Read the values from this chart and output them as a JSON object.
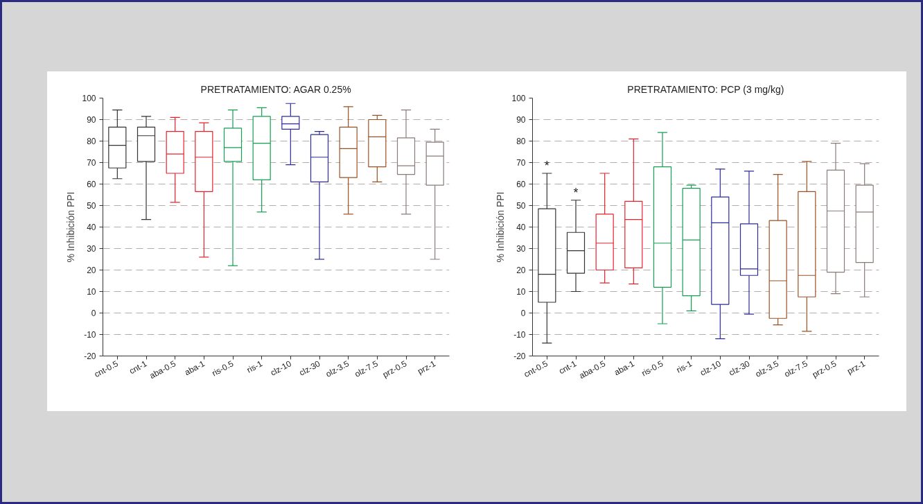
{
  "chart_data": [
    {
      "type": "box",
      "title": "PRETRATAMIENTO: AGAR 0.25%",
      "ylabel": "% Inhibición PPI",
      "categories": [
        "cnt-0.5",
        "cnt-1",
        "aba-0.5",
        "aba-1",
        "ris-0.5",
        "ris-1",
        "clz-10",
        "clz-30",
        "olz-3.5",
        "olz-7.5",
        "prz-0.5",
        "prz-1"
      ],
      "colors": [
        "#333333",
        "#333333",
        "#e8202a",
        "#e8202a",
        "#10a050",
        "#10a050",
        "#2a2a9a",
        "#2a2a9a",
        "#9a5020",
        "#9a5020",
        "#8a7a78",
        "#8a7a78"
      ],
      "boxes": [
        {
          "low": 62.5,
          "q1": 67.5,
          "median": 78,
          "q3": 86.5,
          "high": 94.5
        },
        {
          "low": 43.5,
          "q1": 70.5,
          "median": 82.5,
          "q3": 86.5,
          "high": 91.5
        },
        {
          "low": 51.5,
          "q1": 65,
          "median": 74,
          "q3": 84.5,
          "high": 91
        },
        {
          "low": 26,
          "q1": 56.5,
          "median": 72.5,
          "q3": 84.5,
          "high": 88.5
        },
        {
          "low": 22,
          "q1": 70.5,
          "median": 77,
          "q3": 86,
          "high": 94.5
        },
        {
          "low": 47,
          "q1": 62,
          "median": 79,
          "q3": 91.5,
          "high": 95.5
        },
        {
          "low": 69,
          "q1": 85.5,
          "median": 88,
          "q3": 91.5,
          "high": 97.5
        },
        {
          "low": 25,
          "q1": 61,
          "median": 72.5,
          "q3": 83,
          "high": 84.5
        },
        {
          "low": 46,
          "q1": 63,
          "median": 76.5,
          "q3": 86.5,
          "high": 96
        },
        {
          "low": 61,
          "q1": 68,
          "median": 82,
          "q3": 90,
          "high": 92
        },
        {
          "low": 46,
          "q1": 64.5,
          "median": 68.5,
          "q3": 81.5,
          "high": 94.5
        },
        {
          "low": 25,
          "q1": 59.5,
          "median": 73,
          "q3": 79.5,
          "high": 85.5
        }
      ],
      "ylim": [
        -20,
        100
      ],
      "yticks": [
        -20,
        -10,
        0,
        10,
        20,
        30,
        40,
        50,
        60,
        70,
        80,
        90,
        100
      ],
      "grid": "y"
    },
    {
      "type": "box",
      "title": "PRETRATAMIENTO: PCP (3 mg/kg)",
      "ylabel": "% Inhibición PPI",
      "categories": [
        "cnt-0.5",
        "cnt-1",
        "aba-0.5",
        "aba-1",
        "ris-0.5",
        "ris-1",
        "clz-10",
        "clz-30",
        "olz-3.5",
        "olz-7.5",
        "prz-0.5",
        "prz-1"
      ],
      "colors": [
        "#333333",
        "#333333",
        "#e8202a",
        "#e8202a",
        "#10a050",
        "#10a050",
        "#2a2a9a",
        "#2a2a9a",
        "#9a5020",
        "#9a5020",
        "#8a7a78",
        "#8a7a78"
      ],
      "boxes": [
        {
          "low": -14,
          "q1": 5,
          "median": 18,
          "q3": 48.5,
          "high": 65
        },
        {
          "low": 10,
          "q1": 18.5,
          "median": 29,
          "q3": 37.5,
          "high": 52.5
        },
        {
          "low": 14,
          "q1": 20,
          "median": 32.5,
          "q3": 46,
          "high": 65
        },
        {
          "low": 13.5,
          "q1": 21,
          "median": 43.5,
          "q3": 52,
          "high": 81
        },
        {
          "low": -5,
          "q1": 12,
          "median": 32.5,
          "q3": 68,
          "high": 84
        },
        {
          "low": 1,
          "q1": 8,
          "median": 34,
          "q3": 58,
          "high": 59.5
        },
        {
          "low": -12,
          "q1": 4,
          "median": 42,
          "q3": 54,
          "high": 67
        },
        {
          "low": -0.5,
          "q1": 17.5,
          "median": 20.5,
          "q3": 41.5,
          "high": 66
        },
        {
          "low": -5.5,
          "q1": -2.5,
          "median": 15,
          "q3": 43,
          "high": 64.5
        },
        {
          "low": -8.5,
          "q1": 7.5,
          "median": 17.5,
          "q3": 56.5,
          "high": 70.5
        },
        {
          "low": 9,
          "q1": 19,
          "median": 47.5,
          "q3": 66.5,
          "high": 79
        },
        {
          "low": 7.5,
          "q1": 23.5,
          "median": 47,
          "q3": 59.5,
          "high": 69.5
        }
      ],
      "annotations": [
        {
          "text": "*",
          "x": "cnt-0.5",
          "y": 65
        },
        {
          "text": "*",
          "x": "cnt-1",
          "y": 52.5
        }
      ],
      "ylim": [
        -20,
        100
      ],
      "yticks": [
        -20,
        -10,
        0,
        10,
        20,
        30,
        40,
        50,
        60,
        70,
        80,
        90,
        100
      ],
      "grid": "y"
    }
  ]
}
